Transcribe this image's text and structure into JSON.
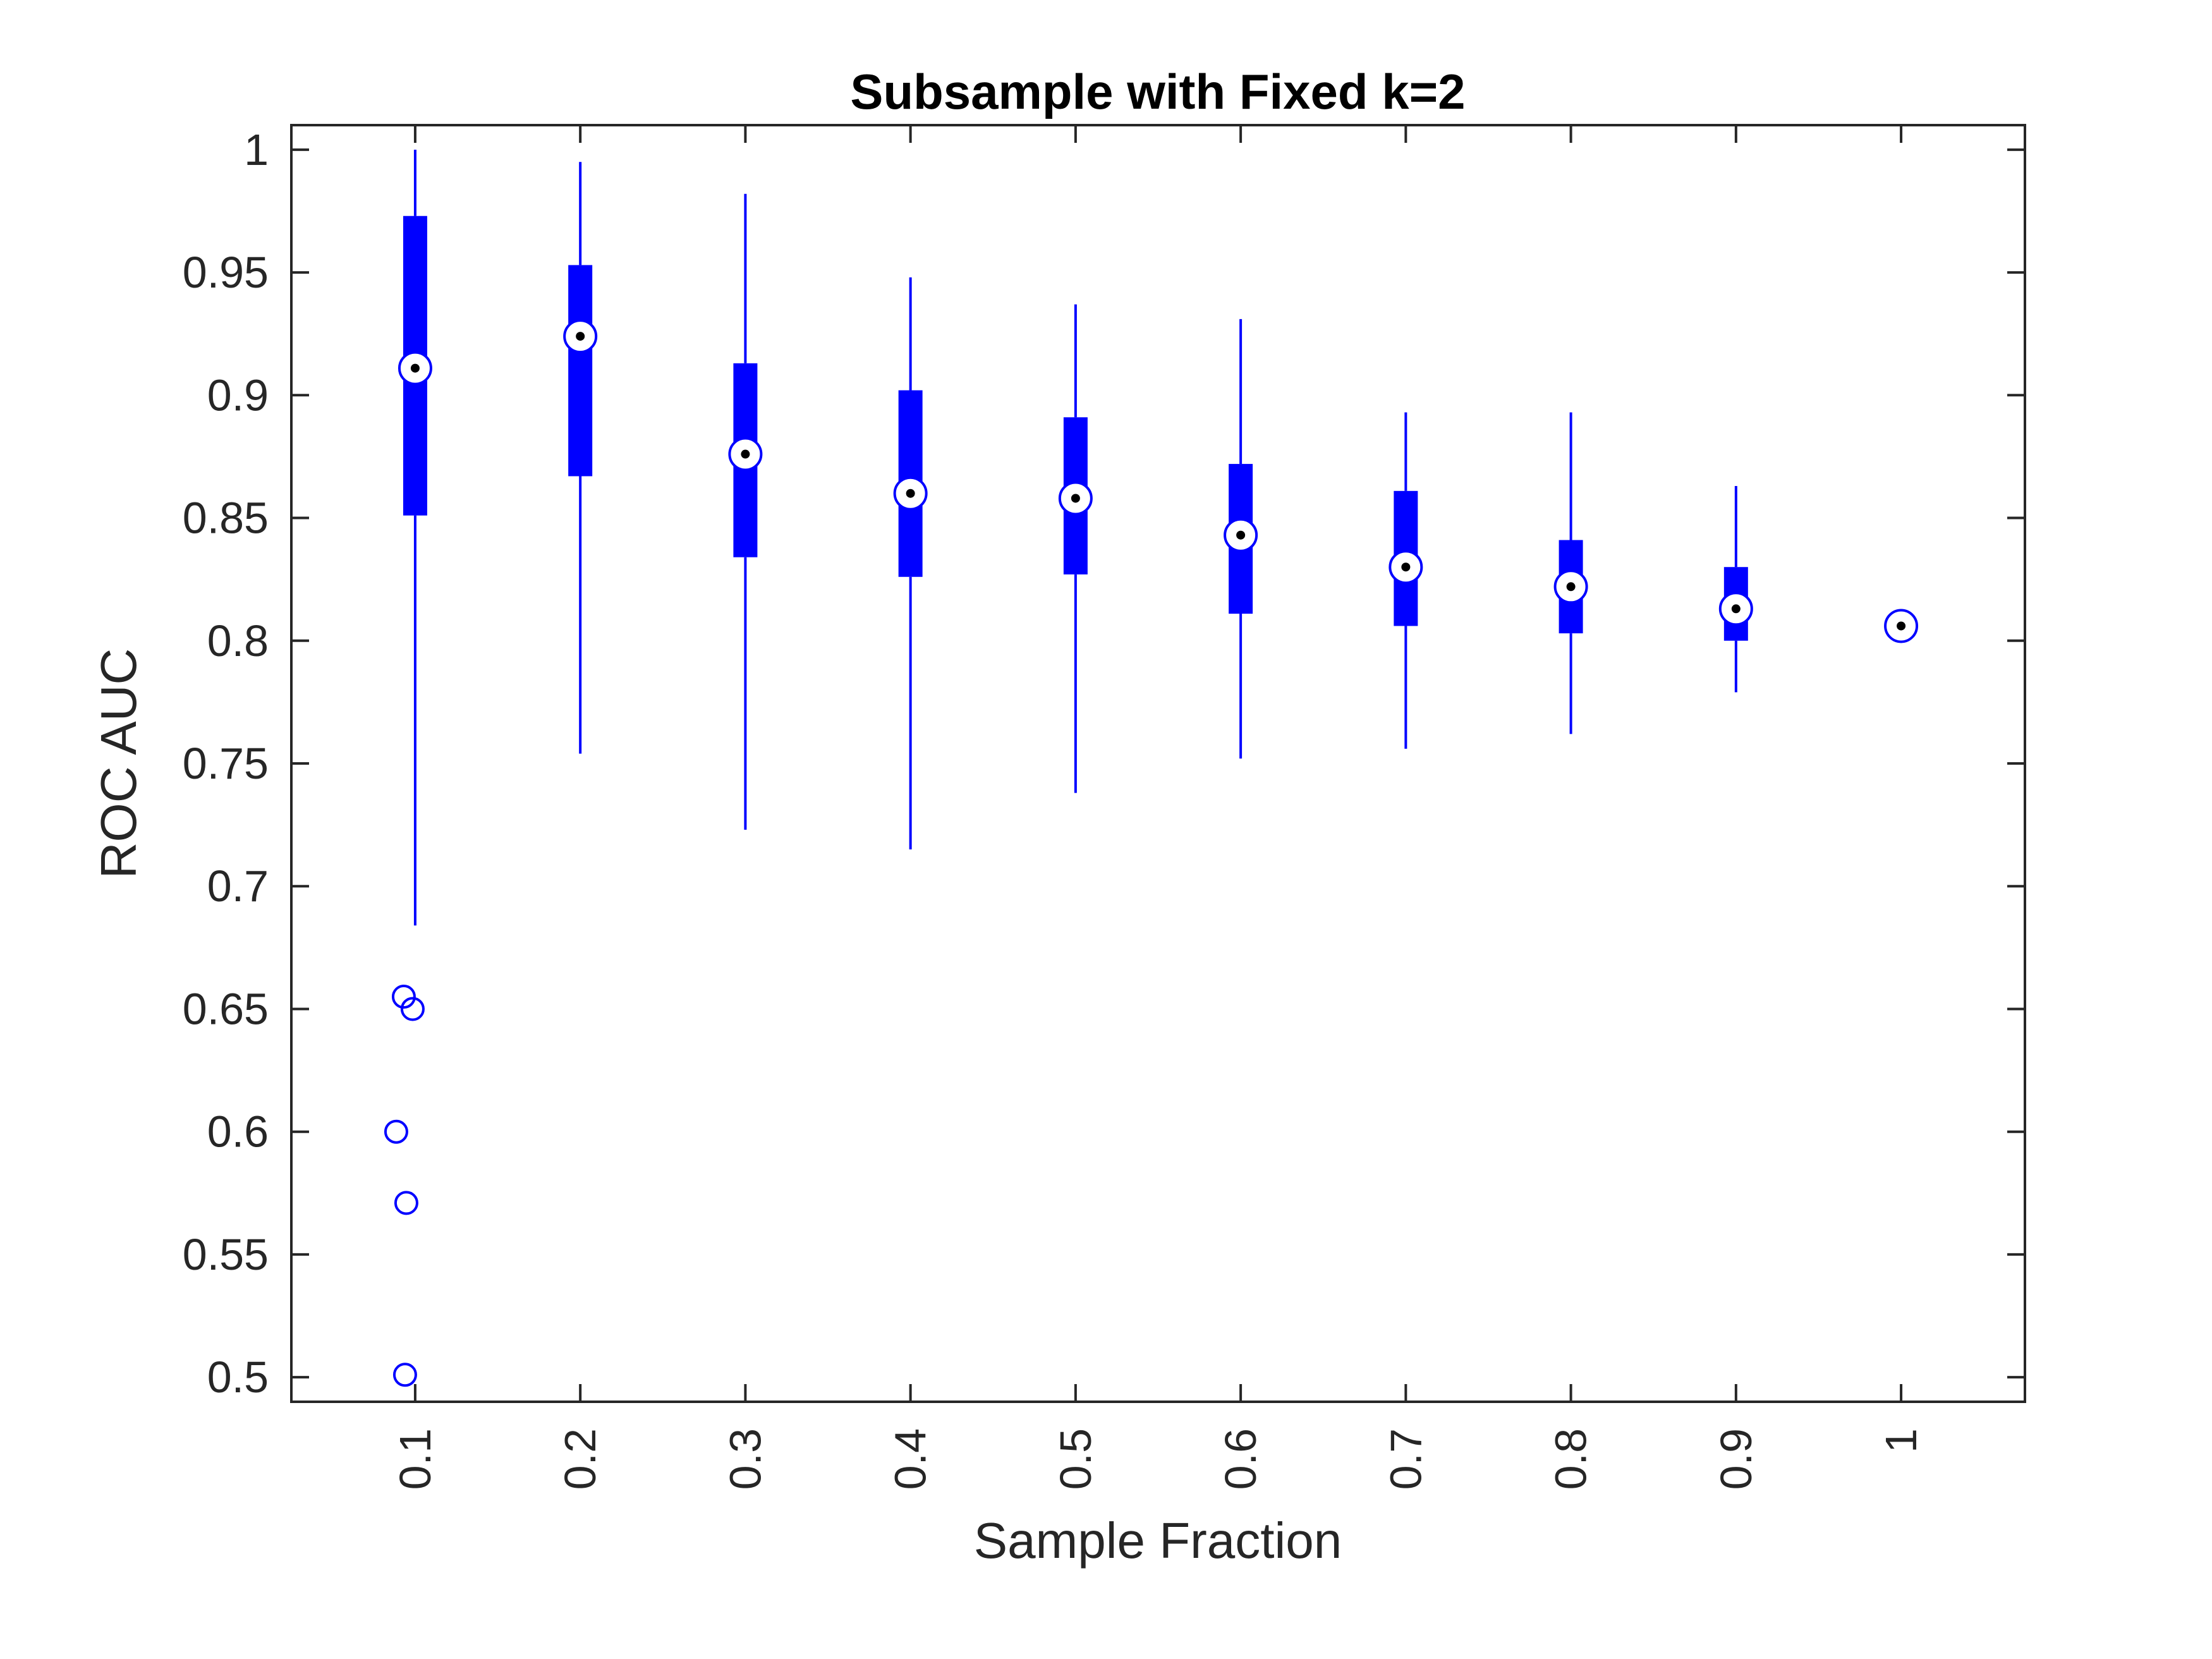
{
  "chart_data": {
    "type": "boxplot",
    "title": "Subsample with Fixed k=2",
    "xlabel": "Sample Fraction",
    "ylabel": "ROC AUC",
    "categories": [
      "0.1",
      "0.2",
      "0.3",
      "0.4",
      "0.5",
      "0.6",
      "0.7",
      "0.8",
      "0.9",
      "1"
    ],
    "ylim": [
      0.49,
      1.01
    ],
    "yticks": [
      "0.5",
      "0.55",
      "0.6",
      "0.65",
      "0.7",
      "0.75",
      "0.8",
      "0.85",
      "0.9",
      "0.95",
      "1"
    ],
    "grid": false,
    "box_color": "#0000ff",
    "median_color": "#000000",
    "boxes": [
      {
        "category": "0.1",
        "whisker_low": 0.684,
        "q1": 0.851,
        "median": 0.911,
        "q3": 0.973,
        "whisker_high": 1.0,
        "outliers": [
          0.655,
          0.65,
          0.6,
          0.571,
          0.501
        ]
      },
      {
        "category": "0.2",
        "whisker_low": 0.754,
        "q1": 0.867,
        "median": 0.924,
        "q3": 0.953,
        "whisker_high": 0.995,
        "outliers": []
      },
      {
        "category": "0.3",
        "whisker_low": 0.723,
        "q1": 0.834,
        "median": 0.876,
        "q3": 0.913,
        "whisker_high": 0.982,
        "outliers": []
      },
      {
        "category": "0.4",
        "whisker_low": 0.715,
        "q1": 0.826,
        "median": 0.86,
        "q3": 0.902,
        "whisker_high": 0.948,
        "outliers": []
      },
      {
        "category": "0.5",
        "whisker_low": 0.738,
        "q1": 0.827,
        "median": 0.858,
        "q3": 0.891,
        "whisker_high": 0.937,
        "outliers": []
      },
      {
        "category": "0.6",
        "whisker_low": 0.752,
        "q1": 0.811,
        "median": 0.843,
        "q3": 0.872,
        "whisker_high": 0.931,
        "outliers": []
      },
      {
        "category": "0.7",
        "whisker_low": 0.756,
        "q1": 0.806,
        "median": 0.83,
        "q3": 0.861,
        "whisker_high": 0.893,
        "outliers": []
      },
      {
        "category": "0.8",
        "whisker_low": 0.762,
        "q1": 0.803,
        "median": 0.822,
        "q3": 0.841,
        "whisker_high": 0.893,
        "outliers": []
      },
      {
        "category": "0.9",
        "whisker_low": 0.779,
        "q1": 0.8,
        "median": 0.813,
        "q3": 0.83,
        "whisker_high": 0.863,
        "outliers": []
      },
      {
        "category": "1",
        "whisker_low": 0.806,
        "q1": 0.806,
        "median": 0.806,
        "q3": 0.806,
        "whisker_high": 0.806,
        "outliers": []
      }
    ]
  }
}
